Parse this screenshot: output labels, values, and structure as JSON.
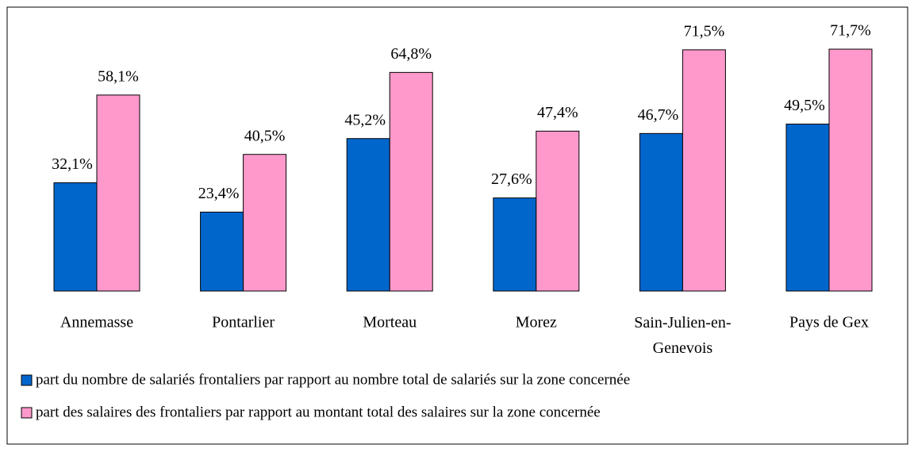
{
  "chart_data": {
    "type": "bar",
    "categories": [
      "Annemasse",
      "Pontarlier",
      "Morteau",
      "Morez",
      "Sain-Julien-en-Genevois",
      "Pays de Gex"
    ],
    "series": [
      {
        "name": "part du nombre de salariés frontaliers par rapport au nombre total de salariés sur la zone concernée",
        "color": "#0066cc",
        "values": [
          32.1,
          23.4,
          45.2,
          27.6,
          46.7,
          49.5
        ],
        "value_labels": [
          "32,1%",
          "23,4%",
          "45,2%",
          "27,6%",
          "46,7%",
          "49,5%"
        ]
      },
      {
        "name": "part des salaires des frontaliers par rapport au montant total des salaires sur la zone concernée",
        "color": "#ff99cc",
        "values": [
          58.1,
          40.5,
          64.8,
          47.4,
          71.5,
          71.7
        ],
        "value_labels": [
          "58,1%",
          "40,5%",
          "64,8%",
          "47,4%",
          "71,5%",
          "71,7%"
        ]
      }
    ]
  }
}
